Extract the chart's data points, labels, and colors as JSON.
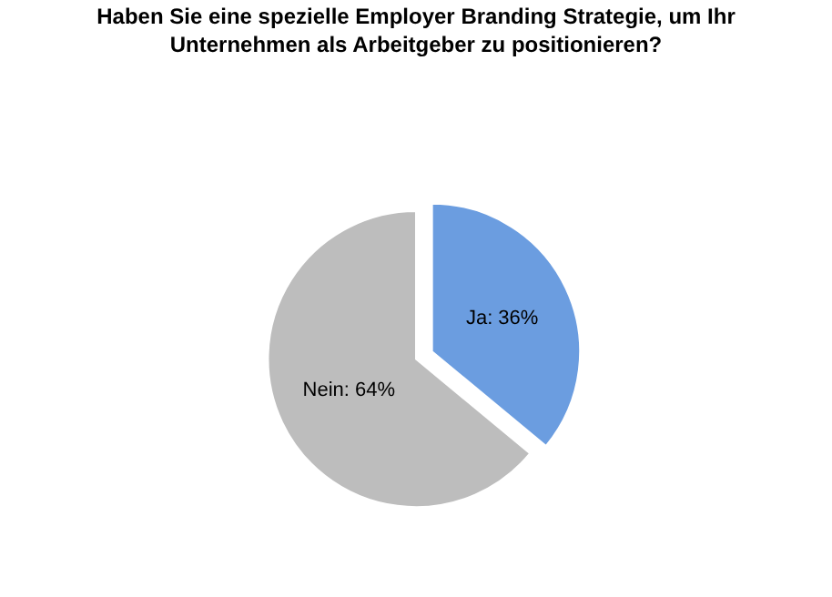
{
  "chart_data": {
    "type": "pie",
    "title": "Haben Sie eine spezielle Employer Branding Strategie, um Ihr\nUnternehmen als Arbeitgeber zu positionieren?",
    "categories": [
      "Ja",
      "Nein"
    ],
    "values": [
      36,
      64
    ],
    "colors": [
      "#6b9de0",
      "#bdbdbd"
    ],
    "value_labels": [
      "36%",
      "64%"
    ],
    "legend": false
  }
}
